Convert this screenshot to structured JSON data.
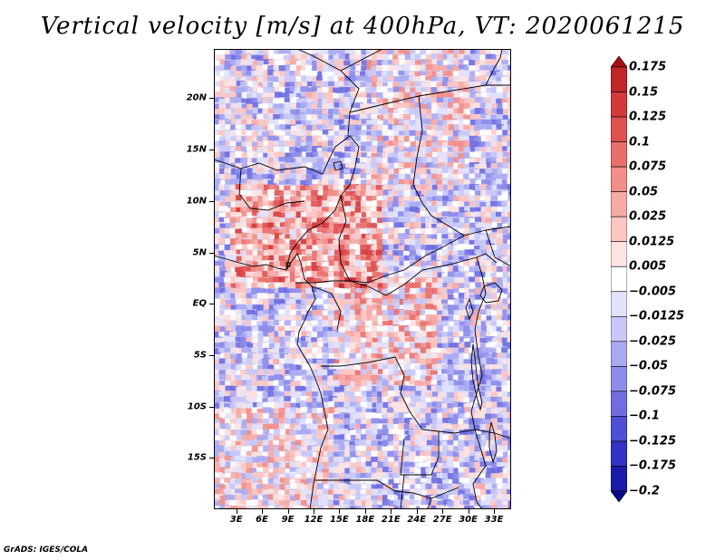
{
  "title": "Vertical velocity [m/s] at 400hPa, VT: 2020061215",
  "footer": "GrADS: IGES/COLA",
  "map": {
    "lat_labels": [
      "20N",
      "15N",
      "10N",
      "5N",
      "EQ",
      "5S",
      "10S",
      "15S"
    ],
    "lat_values": [
      20,
      15,
      10,
      5,
      0,
      -5,
      -10,
      -15
    ],
    "lon_labels": [
      "3E",
      "6E",
      "9E",
      "12E",
      "15E",
      "18E",
      "21E",
      "24E",
      "27E",
      "30E",
      "33E"
    ],
    "lon_values": [
      3,
      6,
      9,
      12,
      15,
      18,
      21,
      24,
      27,
      30,
      33
    ],
    "lat_range": [
      -20,
      24.8
    ],
    "lon_range": [
      0.4,
      35
    ]
  },
  "colorbar": {
    "labels": [
      "0.175",
      "0.15",
      "0.125",
      "0.1",
      "0.075",
      "0.05",
      "0.025",
      "0.0125",
      "0.005",
      "-0.005",
      "-0.0125",
      "-0.025",
      "-0.05",
      "-0.075",
      "-0.1",
      "-0.125",
      "-0.175",
      "-0.2"
    ],
    "colors": [
      "#a50f15",
      "#c0262a",
      "#d43a3a",
      "#e05252",
      "#ea6f6a",
      "#f28e88",
      "#f8aaa6",
      "#fcc6c2",
      "#fde3e1",
      "#ffffff",
      "#e2e2fc",
      "#c8c8f8",
      "#aaaaf2",
      "#8c8ceb",
      "#6e6ee2",
      "#4f4fd6",
      "#3232c4",
      "#1a1aa8",
      "#0a0a8a"
    ]
  },
  "colors": {
    "positive_dark": "#c0262a",
    "positive_light": "#f8aaa6",
    "neutral": "#ffffff",
    "negative_light": "#aaaaf2",
    "negative_dark": "#4f4fd6",
    "coast_border": "#000000"
  }
}
